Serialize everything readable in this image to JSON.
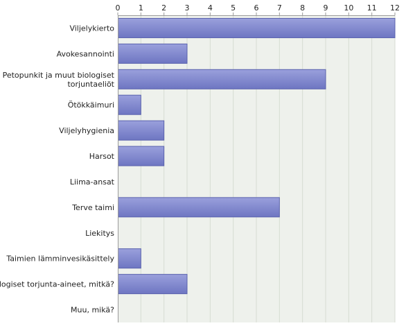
{
  "chart_data": {
    "type": "bar",
    "orientation": "horizontal",
    "title": "",
    "xlabel": "",
    "ylabel": "",
    "xlim": [
      0,
      12
    ],
    "ticks": [
      "0",
      "1",
      "2",
      "3",
      "4",
      "5",
      "6",
      "7",
      "8",
      "9",
      "10",
      "11",
      "12"
    ],
    "grid": true,
    "legend": "none",
    "categories": [
      [
        "Viljelykierto"
      ],
      [
        "Avokesannointi"
      ],
      [
        "Petopunkit ja muut biologiset",
        "torjuntaeliöt"
      ],
      [
        "Ötökkäimuri"
      ],
      [
        "Viljelyhygienia"
      ],
      [
        "Harsot"
      ],
      [
        "Liima-ansat"
      ],
      [
        "Terve taimi"
      ],
      [
        "Liekitys"
      ],
      [
        "Taimien lämminvesikäsittely"
      ],
      [
        "Biologiset torjunta-aineet, mitkä?"
      ],
      [
        "Muu, mikä?"
      ]
    ],
    "values": [
      12,
      3,
      9,
      1,
      2,
      2,
      0,
      7,
      0,
      1,
      3,
      0
    ],
    "colors": {
      "bar_fill_light": "#9aa0dc",
      "bar_fill_dark": "#6e76c2",
      "bar_stroke": "#5a62ad",
      "plot_background": "#eef1ec",
      "grid": "#d7dcd2",
      "axis": "#9a9a9a"
    }
  }
}
